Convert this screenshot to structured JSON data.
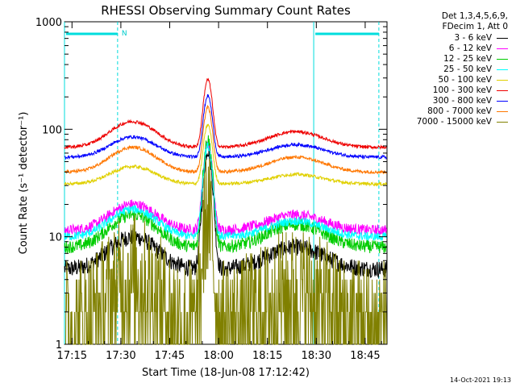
{
  "chart_data": {
    "type": "line",
    "title": "RHESSI Observing Summary Count Rates",
    "xlabel": "Start Time (18-Jun-08 17:12:42)",
    "ylabel": "Count Rate (s⁻¹ detector⁻¹)",
    "yscale": "log",
    "ylim": [
      1,
      1000
    ],
    "xlim_minutes": [
      0,
      99
    ],
    "x_tick_labels": [
      "17:15",
      "17:30",
      "17:45",
      "18:00",
      "18:15",
      "18:30",
      "18:45"
    ],
    "x_tick_minutes": [
      2.3,
      17.3,
      32.3,
      47.3,
      62.3,
      77.3,
      92.3
    ],
    "y_tick_labels": [
      "1",
      "10",
      "100",
      "1000"
    ],
    "y_tick_values": [
      1,
      10,
      100,
      1000
    ],
    "legend_header": [
      "Det 1,3,4,5,6,9,",
      "FDecim 1, Att 0"
    ],
    "series": [
      {
        "name": "3 - 6 keV",
        "color": "#000000",
        "base": 5,
        "hump1": 10,
        "hump2": 8,
        "peak": 65,
        "noise": 0.08
      },
      {
        "name": "6 - 12 keV",
        "color": "#ff00ff",
        "base": 11.5,
        "hump1": 20,
        "hump2": 16,
        "peak": 75,
        "noise": 0.05
      },
      {
        "name": "12 - 25 keV",
        "color": "#00cc00",
        "base": 8,
        "hump1": 16,
        "hump2": 13,
        "peak": 80,
        "noise": 0.06
      },
      {
        "name": "25 - 50 keV",
        "color": "#00ffff",
        "base": 10,
        "hump1": 18,
        "hump2": 14,
        "peak": 70,
        "noise": 0.04
      },
      {
        "name": "50 - 100 keV",
        "color": "#e0d000",
        "base": 31,
        "hump1": 45,
        "hump2": 38,
        "peak": 110,
        "noise": 0.015
      },
      {
        "name": "100 - 300 keV",
        "color": "#ee0000",
        "base": 68,
        "hump1": 118,
        "hump2": 95,
        "peak": 290,
        "noise": 0.015
      },
      {
        "name": "300 - 800 keV",
        "color": "#0000ff",
        "base": 55,
        "hump1": 85,
        "hump2": 72,
        "peak": 205,
        "noise": 0.015
      },
      {
        "name": "800 - 7000 keV",
        "color": "#ff7700",
        "base": 40,
        "hump1": 68,
        "hump2": 55,
        "peak": 160,
        "noise": 0.015
      },
      {
        "name": "7000 - 15000 keV",
        "color": "#808000",
        "base": 1.5,
        "hump1": 4,
        "hump2": 3,
        "peak": 16,
        "noise": 0.25
      }
    ],
    "saa_marker": "N",
    "night_intervals_minutes": [
      [
        0,
        16.3
      ],
      [
        76.5,
        96.5
      ]
    ]
  },
  "footer": {
    "timestamp": "14-Oct-2021 19:13"
  }
}
